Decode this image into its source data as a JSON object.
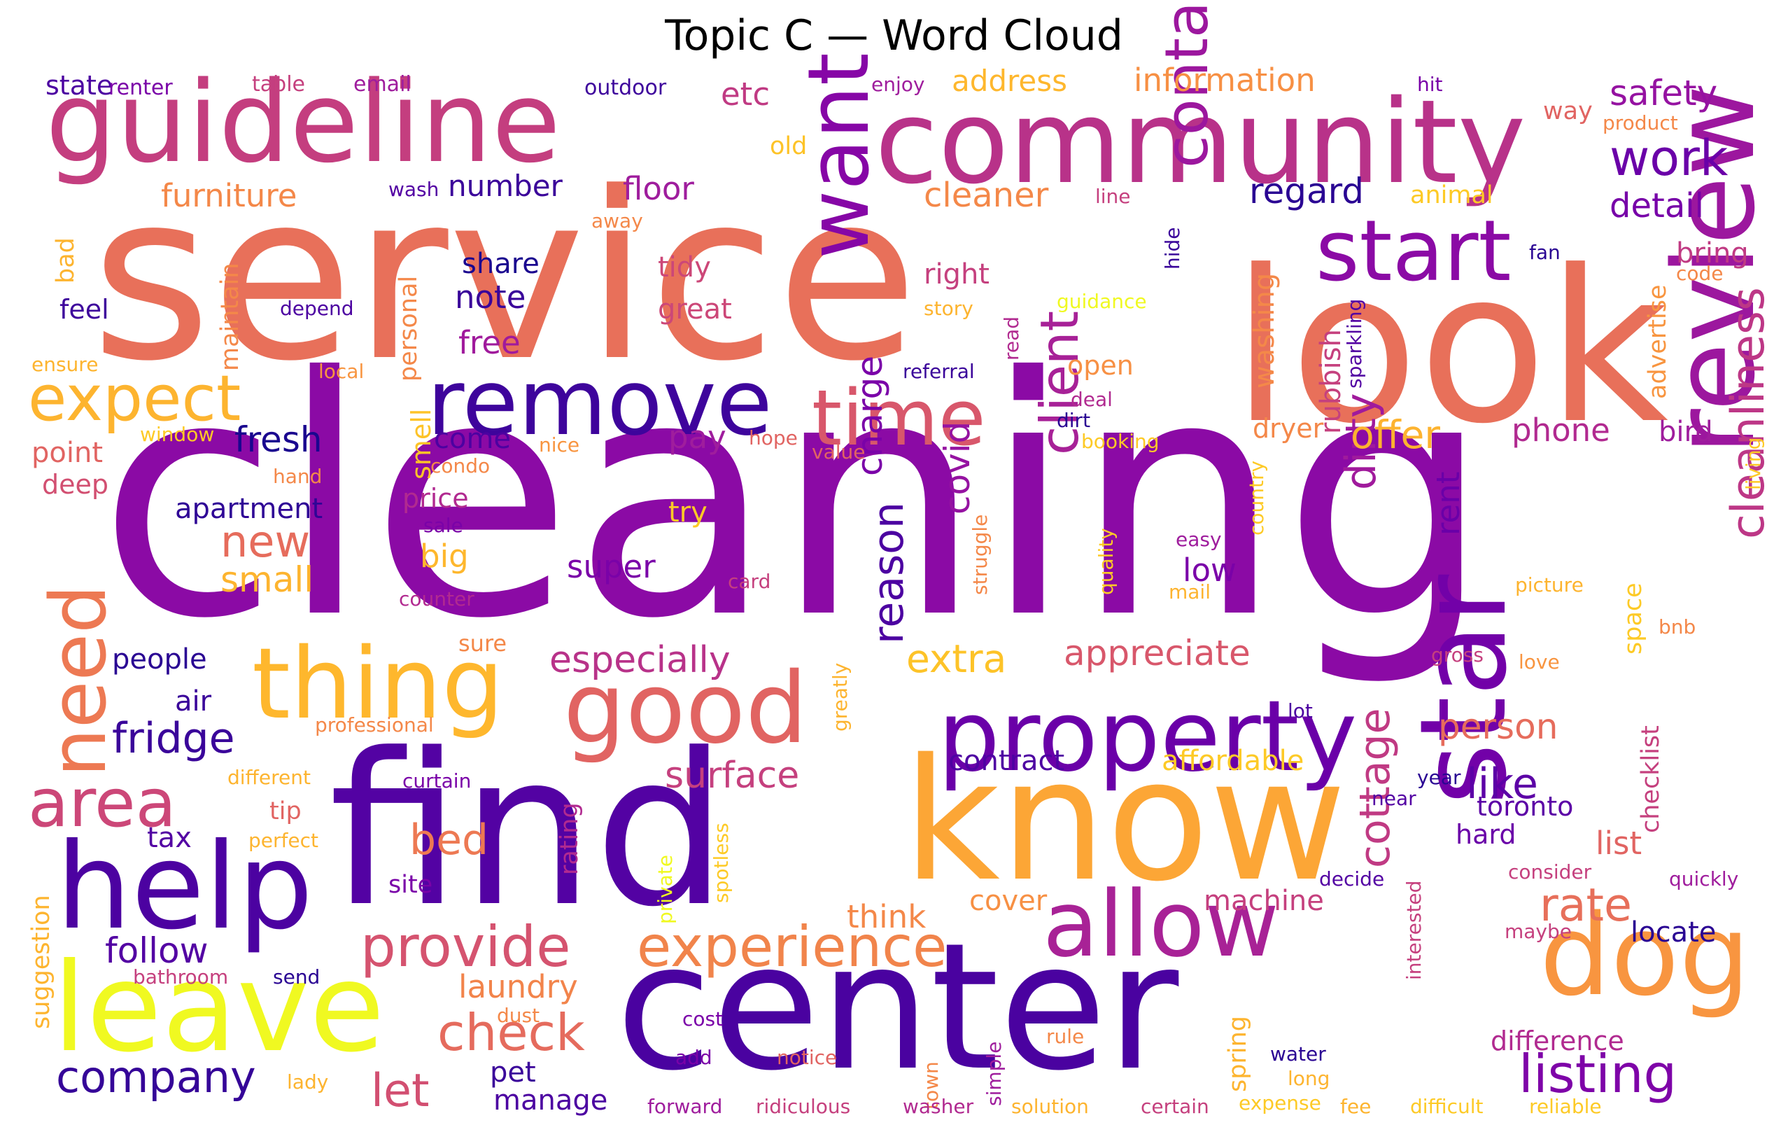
{
  "chart_data": {
    "type": "wordcloud",
    "title": "Topic C — Word Cloud",
    "colormap": "plasma",
    "words": [
      {
        "text": "cleaning",
        "weight": 100,
        "color": "#8b0aa5"
      },
      {
        "text": "service",
        "weight": 80,
        "color": "#e8705a"
      },
      {
        "text": "look",
        "weight": 74,
        "color": "#e8705a"
      },
      {
        "text": "find",
        "weight": 70,
        "color": "#5302a3"
      },
      {
        "text": "center",
        "weight": 62,
        "color": "#4a02a0"
      },
      {
        "text": "know",
        "weight": 60,
        "color": "#fca636"
      },
      {
        "text": "community",
        "weight": 52,
        "color": "#b83289"
      },
      {
        "text": "guideline",
        "weight": 50,
        "color": "#c43e7f"
      },
      {
        "text": "review",
        "weight": 48,
        "color": "#9c179e"
      },
      {
        "text": "help",
        "weight": 44,
        "color": "#4c02a1"
      },
      {
        "text": "leave",
        "weight": 42,
        "color": "#f0f921"
      },
      {
        "text": "star",
        "weight": 42,
        "color": "#7201a8"
      },
      {
        "text": "dog",
        "weight": 40,
        "color": "#f89540"
      },
      {
        "text": "property",
        "weight": 38,
        "color": "#6a00a8"
      },
      {
        "text": "thing",
        "weight": 36,
        "color": "#feb72d"
      },
      {
        "text": "good",
        "weight": 36,
        "color": "#e16462"
      },
      {
        "text": "allow",
        "weight": 34,
        "color": "#a82296"
      },
      {
        "text": "remove",
        "weight": 32,
        "color": "#3e049c"
      },
      {
        "text": "want",
        "weight": 32,
        "color": "#8606a6"
      },
      {
        "text": "time",
        "weight": 31,
        "color": "#d8576b"
      },
      {
        "text": "need",
        "weight": 30,
        "color": "#ed7953"
      },
      {
        "text": "start",
        "weight": 30,
        "color": "#8b0aa5"
      },
      {
        "text": "expect",
        "weight": 28,
        "color": "#fdb42f"
      },
      {
        "text": "area",
        "weight": 28,
        "color": "#cc4778"
      },
      {
        "text": "contact",
        "weight": 27,
        "color": "#9c179e"
      },
      {
        "text": "experience",
        "weight": 26,
        "color": "#f1844b"
      },
      {
        "text": "provide",
        "weight": 26,
        "color": "#d5536f"
      },
      {
        "text": "listing",
        "weight": 24,
        "color": "#7e03a8"
      },
      {
        "text": "cleanliness",
        "weight": 23,
        "color": "#bd3786"
      },
      {
        "text": "check",
        "weight": 22,
        "color": "#e56b5d"
      },
      {
        "text": "client",
        "weight": 22,
        "color": "#a72197"
      },
      {
        "text": "company",
        "weight": 21,
        "color": "#350498"
      },
      {
        "text": "work",
        "weight": 21,
        "color": "#6a00a8"
      },
      {
        "text": "fridge",
        "weight": 20,
        "color": "#3a049a"
      },
      {
        "text": "rate",
        "weight": 20,
        "color": "#e76f5a"
      },
      {
        "text": "like",
        "weight": 20,
        "color": "#5c01a6"
      },
      {
        "text": "cottage",
        "weight": 19,
        "color": "#c03a83"
      },
      {
        "text": "dirty",
        "weight": 19,
        "color": "#a01a9c"
      },
      {
        "text": "let",
        "weight": 19,
        "color": "#d24f71"
      },
      {
        "text": "new",
        "weight": 18,
        "color": "#e66c5c"
      },
      {
        "text": "bed",
        "weight": 18,
        "color": "#ed7953"
      },
      {
        "text": "reason",
        "weight": 18,
        "color": "#4c02a1"
      },
      {
        "text": "charge",
        "weight": 17,
        "color": "#7a02a8"
      },
      {
        "text": "covid",
        "weight": 17,
        "color": "#9512a1"
      },
      {
        "text": "extra",
        "weight": 17,
        "color": "#fdc328"
      },
      {
        "text": "appreciate",
        "weight": 17,
        "color": "#d8576b"
      },
      {
        "text": "offer",
        "weight": 17,
        "color": "#fdb32f"
      },
      {
        "text": "safety",
        "weight": 16,
        "color": "#9512a1"
      },
      {
        "text": "detail",
        "weight": 16,
        "color": "#7701a8"
      },
      {
        "text": "regard",
        "weight": 16,
        "color": "#2a0593"
      },
      {
        "text": "phone",
        "weight": 15,
        "color": "#b12a90"
      },
      {
        "text": "person",
        "weight": 15,
        "color": "#e66c5c"
      },
      {
        "text": "especially",
        "weight": 15,
        "color": "#b83289"
      },
      {
        "text": "surface",
        "weight": 15,
        "color": "#c5407e"
      },
      {
        "text": "fresh",
        "weight": 15,
        "color": "#1a068f"
      },
      {
        "text": "follow",
        "weight": 15,
        "color": "#5302a3"
      },
      {
        "text": "laundry",
        "weight": 14,
        "color": "#f2844b"
      },
      {
        "text": "contract",
        "weight": 14,
        "color": "#4e02a2"
      },
      {
        "text": "affordable",
        "weight": 14,
        "color": "#fdca26"
      },
      {
        "text": "information",
        "weight": 14,
        "color": "#f79044"
      },
      {
        "text": "address",
        "weight": 14,
        "color": "#feb72d"
      },
      {
        "text": "cleaner",
        "weight": 14,
        "color": "#f48849"
      },
      {
        "text": "furniture",
        "weight": 14,
        "color": "#f48849"
      },
      {
        "text": "floor",
        "weight": 14,
        "color": "#9f1d9d"
      },
      {
        "text": "number",
        "weight": 14,
        "color": "#3b049a"
      },
      {
        "text": "etc",
        "weight": 14,
        "color": "#c03a83"
      },
      {
        "text": "pay",
        "weight": 14,
        "color": "#9f1d9d"
      },
      {
        "text": "super",
        "weight": 14,
        "color": "#7a02a8"
      },
      {
        "text": "think",
        "weight": 14,
        "color": "#f48849"
      },
      {
        "text": "low",
        "weight": 14,
        "color": "#7a02a8"
      },
      {
        "text": "rent",
        "weight": 13,
        "color": "#6a00a8"
      },
      {
        "text": "toronto",
        "weight": 13,
        "color": "#5c01a6"
      },
      {
        "text": "list",
        "weight": 13,
        "color": "#e16462"
      },
      {
        "text": "locate",
        "weight": 13,
        "color": "#2a0593"
      },
      {
        "text": "difference",
        "weight": 13,
        "color": "#b12a90"
      },
      {
        "text": "bring",
        "weight": 12,
        "color": "#c03a83"
      },
      {
        "text": "bird",
        "weight": 12,
        "color": "#9f1d9d"
      },
      {
        "text": "machine",
        "weight": 12,
        "color": "#c5407e"
      },
      {
        "text": "cover",
        "weight": 12,
        "color": "#f79044"
      },
      {
        "text": "apartment",
        "weight": 12,
        "color": "#2f0596"
      },
      {
        "text": "small",
        "weight": 12,
        "color": "#fdb42f"
      },
      {
        "text": "big",
        "weight": 12,
        "color": "#feb72d"
      },
      {
        "text": "come",
        "weight": 12,
        "color": "#4c02a1"
      },
      {
        "text": "note",
        "weight": 12,
        "color": "#3a049a"
      },
      {
        "text": "free",
        "weight": 12,
        "color": "#a01a9c"
      },
      {
        "text": "share",
        "weight": 12,
        "color": "#1a068f"
      },
      {
        "text": "tidy",
        "weight": 12,
        "color": "#cc4778"
      },
      {
        "text": "great",
        "weight": 12,
        "color": "#cc4778"
      },
      {
        "text": "right",
        "weight": 12,
        "color": "#c5407e"
      },
      {
        "text": "try",
        "weight": 12,
        "color": "#fdca26"
      },
      {
        "text": "people",
        "weight": 12,
        "color": "#2a0593"
      },
      {
        "text": "air",
        "weight": 12,
        "color": "#3a049a"
      },
      {
        "text": "tax",
        "weight": 12,
        "color": "#5302a3"
      },
      {
        "text": "tip",
        "weight": 11,
        "color": "#e16462"
      },
      {
        "text": "pet",
        "weight": 11,
        "color": "#3a049a"
      },
      {
        "text": "smell",
        "weight": 11,
        "color": "#fdc328"
      },
      {
        "text": "point",
        "weight": 11,
        "color": "#e16462"
      },
      {
        "text": "deep",
        "weight": 11,
        "color": "#d24f71"
      },
      {
        "text": "price",
        "weight": 11,
        "color": "#b12a90"
      },
      {
        "text": "feel",
        "weight": 11,
        "color": "#3e049c"
      },
      {
        "text": "bad",
        "weight": 11,
        "color": "#fdb42f"
      },
      {
        "text": "dryer",
        "weight": 11,
        "color": "#f48849"
      },
      {
        "text": "open",
        "weight": 11,
        "color": "#f79044"
      },
      {
        "text": "washing",
        "weight": 11,
        "color": "#f48849"
      },
      {
        "text": "rubbish",
        "weight": 11,
        "color": "#c5407e"
      },
      {
        "text": "hard",
        "weight": 11,
        "color": "#6a00a8"
      },
      {
        "text": "manage",
        "weight": 11,
        "color": "#4c02a1"
      },
      {
        "text": "state",
        "weight": 10,
        "color": "#4c02a1"
      },
      {
        "text": "old",
        "weight": 10,
        "color": "#fdc328"
      },
      {
        "text": "personal",
        "weight": 10,
        "color": "#f48849"
      },
      {
        "text": "maintain",
        "weight": 10,
        "color": "#f48849"
      },
      {
        "text": "suggestion",
        "weight": 10,
        "color": "#fdb42f"
      },
      {
        "text": "site",
        "weight": 10,
        "color": "#7a02a8"
      },
      {
        "text": "rating",
        "weight": 10,
        "color": "#b12a90"
      },
      {
        "text": "spring",
        "weight": 10,
        "color": "#fdb42f"
      },
      {
        "text": "checklist",
        "weight": 10,
        "color": "#c5407e"
      },
      {
        "text": "space",
        "weight": 10,
        "color": "#fdca26"
      },
      {
        "text": "advertise",
        "weight": 10,
        "color": "#f89540"
      },
      {
        "text": "way",
        "weight": 9,
        "color": "#e16462"
      },
      {
        "text": "animal",
        "weight": 9,
        "color": "#fdca26"
      },
      {
        "text": "renter",
        "weight": 9,
        "color": "#7a02a8"
      },
      {
        "text": "table",
        "weight": 9,
        "color": "#c5407e"
      },
      {
        "text": "email",
        "weight": 9,
        "color": "#9f1d9d"
      },
      {
        "text": "outdoor",
        "weight": 9,
        "color": "#3e049c"
      },
      {
        "text": "enjoy",
        "weight": 8,
        "color": "#9f1d9d"
      },
      {
        "text": "hit",
        "weight": 8,
        "color": "#7a02a8"
      },
      {
        "text": "product",
        "weight": 8,
        "color": "#f48849"
      },
      {
        "text": "wash",
        "weight": 8,
        "color": "#5302a3"
      },
      {
        "text": "away",
        "weight": 8,
        "color": "#f48849"
      },
      {
        "text": "line",
        "weight": 8,
        "color": "#c5407e"
      },
      {
        "text": "fan",
        "weight": 8,
        "color": "#2a0593"
      },
      {
        "text": "code",
        "weight": 8,
        "color": "#f48849"
      },
      {
        "text": "depend",
        "weight": 8,
        "color": "#4c02a1"
      },
      {
        "text": "story",
        "weight": 8,
        "color": "#fdb42f"
      },
      {
        "text": "guidance",
        "weight": 8,
        "color": "#f0f921"
      },
      {
        "text": "hide",
        "weight": 8,
        "color": "#3a049a"
      },
      {
        "text": "read",
        "weight": 8,
        "color": "#b12a90"
      },
      {
        "text": "sparkling",
        "weight": 8,
        "color": "#5302a3"
      },
      {
        "text": "ensure",
        "weight": 8,
        "color": "#fdb42f"
      },
      {
        "text": "local",
        "weight": 8,
        "color": "#f89540"
      },
      {
        "text": "referral",
        "weight": 8,
        "color": "#3a049a"
      },
      {
        "text": "window",
        "weight": 8,
        "color": "#fdca26"
      },
      {
        "text": "nice",
        "weight": 8,
        "color": "#f89540"
      },
      {
        "text": "hope",
        "weight": 8,
        "color": "#e16462"
      },
      {
        "text": "deal",
        "weight": 8,
        "color": "#b12a90"
      },
      {
        "text": "dirt",
        "weight": 8,
        "color": "#2a0593"
      },
      {
        "text": "booking",
        "weight": 8,
        "color": "#fdca26"
      },
      {
        "text": "condo",
        "weight": 8,
        "color": "#f48849"
      },
      {
        "text": "hand",
        "weight": 8,
        "color": "#f48849"
      },
      {
        "text": "value",
        "weight": 8,
        "color": "#e16462"
      },
      {
        "text": "country",
        "weight": 8,
        "color": "#fdca26"
      },
      {
        "text": "living",
        "weight": 8,
        "color": "#fdca26"
      },
      {
        "text": "quality",
        "weight": 8,
        "color": "#fdca26"
      },
      {
        "text": "sale",
        "weight": 8,
        "color": "#7a02a8"
      },
      {
        "text": "easy",
        "weight": 8,
        "color": "#9f1d9d"
      },
      {
        "text": "card",
        "weight": 8,
        "color": "#c5407e"
      },
      {
        "text": "mail",
        "weight": 8,
        "color": "#fdb42f"
      },
      {
        "text": "counter",
        "weight": 8,
        "color": "#b12a90"
      },
      {
        "text": "struggle",
        "weight": 8,
        "color": "#f48849"
      },
      {
        "text": "picture",
        "weight": 8,
        "color": "#fdb42f"
      },
      {
        "text": "sure",
        "weight": 8,
        "color": "#f48849"
      },
      {
        "text": "gross",
        "weight": 8,
        "color": "#c5407e"
      },
      {
        "text": "love",
        "weight": 8,
        "color": "#f89540"
      },
      {
        "text": "bnb",
        "weight": 8,
        "color": "#f48849"
      },
      {
        "text": "greatly",
        "weight": 8,
        "color": "#fdb42f"
      },
      {
        "text": "professional",
        "weight": 8,
        "color": "#f48849"
      },
      {
        "text": "lot",
        "weight": 8,
        "color": "#4c02a1"
      },
      {
        "text": "different",
        "weight": 8,
        "color": "#fdb42f"
      },
      {
        "text": "curtain",
        "weight": 8,
        "color": "#7a02a8"
      },
      {
        "text": "year",
        "weight": 8,
        "color": "#2a0593"
      },
      {
        "text": "perfect",
        "weight": 8,
        "color": "#fdb42f"
      },
      {
        "text": "private",
        "weight": 8,
        "color": "#f0f921"
      },
      {
        "text": "spotless",
        "weight": 8,
        "color": "#fdca26"
      },
      {
        "text": "near",
        "weight": 8,
        "color": "#5302a3"
      },
      {
        "text": "interested",
        "weight": 8,
        "color": "#c5407e"
      },
      {
        "text": "decide",
        "weight": 8,
        "color": "#5302a3"
      },
      {
        "text": "consider",
        "weight": 8,
        "color": "#c5407e"
      },
      {
        "text": "quickly",
        "weight": 8,
        "color": "#9f1d9d"
      },
      {
        "text": "maybe",
        "weight": 8,
        "color": "#c5407e"
      },
      {
        "text": "bathroom",
        "weight": 8,
        "color": "#c5407e"
      },
      {
        "text": "send",
        "weight": 8,
        "color": "#2a0593"
      },
      {
        "text": "dust",
        "weight": 8,
        "color": "#f48849"
      },
      {
        "text": "cost",
        "weight": 8,
        "color": "#7a02a8"
      },
      {
        "text": "add",
        "weight": 8,
        "color": "#7a02a8"
      },
      {
        "text": "notice",
        "weight": 8,
        "color": "#e16462"
      },
      {
        "text": "town",
        "weight": 8,
        "color": "#f48849"
      },
      {
        "text": "simple",
        "weight": 8,
        "color": "#9f1d9d"
      },
      {
        "text": "rule",
        "weight": 8,
        "color": "#f48849"
      },
      {
        "text": "water",
        "weight": 8,
        "color": "#2a0593"
      },
      {
        "text": "long",
        "weight": 8,
        "color": "#fdb42f"
      },
      {
        "text": "forward",
        "weight": 8,
        "color": "#9f1d9d"
      },
      {
        "text": "ridiculous",
        "weight": 8,
        "color": "#c5407e"
      },
      {
        "text": "washer",
        "weight": 8,
        "color": "#b12a90"
      },
      {
        "text": "solution",
        "weight": 8,
        "color": "#fdb42f"
      },
      {
        "text": "certain",
        "weight": 8,
        "color": "#c5407e"
      },
      {
        "text": "expense",
        "weight": 8,
        "color": "#fdca26"
      },
      {
        "text": "fee",
        "weight": 8,
        "color": "#fdb42f"
      },
      {
        "text": "difficult",
        "weight": 8,
        "color": "#fdca26"
      },
      {
        "text": "reliable",
        "weight": 8,
        "color": "#fdca26"
      },
      {
        "text": "lady",
        "weight": 8,
        "color": "#fdb42f"
      }
    ]
  }
}
